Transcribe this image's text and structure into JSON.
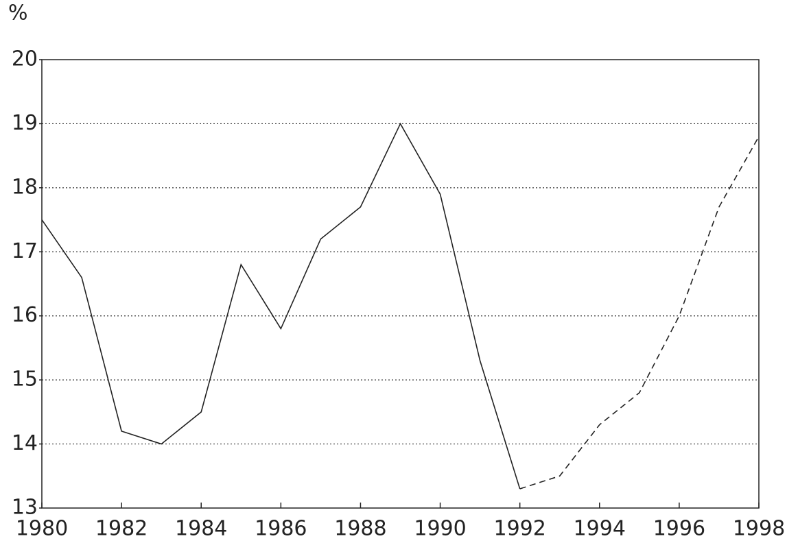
{
  "chart_data": {
    "type": "line",
    "y_label": "%",
    "x": [
      1980,
      1981,
      1982,
      1983,
      1984,
      1985,
      1986,
      1987,
      1988,
      1989,
      1990,
      1991,
      1992,
      1993,
      1994,
      1995,
      1996,
      1997,
      1998
    ],
    "series": [
      {
        "color": "#222222",
        "dash": "solid",
        "values": [
          17.5,
          16.6,
          14.2,
          14.0,
          14.5,
          16.8,
          15.8,
          17.2,
          17.7,
          19.0,
          17.9,
          15.3,
          13.3,
          null,
          null,
          null,
          null,
          null,
          null
        ]
      },
      {
        "color": "#222222",
        "dash": "dashed",
        "values": [
          null,
          null,
          null,
          null,
          null,
          null,
          null,
          null,
          null,
          null,
          null,
          null,
          13.3,
          13.5,
          14.3,
          14.8,
          16.0,
          17.7,
          18.8
        ]
      }
    ],
    "xlim": [
      1980,
      1998
    ],
    "xticks": [
      1980,
      1982,
      1984,
      1986,
      1988,
      1990,
      1992,
      1994,
      1996,
      1998
    ],
    "ylim": [
      13,
      20
    ],
    "yticks": [
      13,
      14,
      15,
      16,
      17,
      18,
      19,
      20
    ],
    "grid": true
  }
}
